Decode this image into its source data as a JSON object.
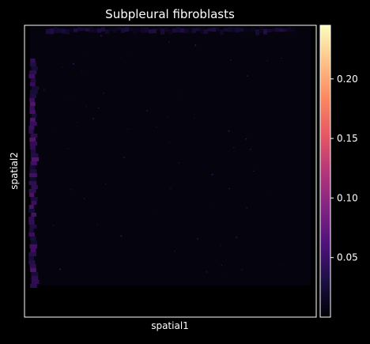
{
  "chart_data": {
    "type": "heatmap",
    "title": "Subpleural fibroblasts",
    "xlabel": "spatial1",
    "ylabel": "spatial2",
    "xticks": [],
    "yticks": [],
    "grid": false,
    "background_color": "#000000",
    "axes_facecolor": "#000000",
    "spine_color": "#ffffff",
    "colormap": "magma",
    "colormap_stops": [
      "#000004",
      "#1c1044",
      "#4f127b",
      "#812581",
      "#b5367a",
      "#e55964",
      "#fb8761",
      "#fec287",
      "#fcfdbf"
    ],
    "colorbar": {
      "range": [
        0.0,
        0.245
      ],
      "ticks": [
        0.05,
        0.1,
        0.15,
        0.2
      ],
      "tick_labels": [
        "0.05",
        "0.10",
        "0.15",
        "0.20"
      ],
      "placement": "right"
    },
    "spot_field": {
      "description_of_values": "expression score per spot; nearly all spots near 0 (very dark purple), slightly higher along the left edge strip and upper edge",
      "background_value": 0.005,
      "left_edge_value": 0.05,
      "top_edge_value": 0.03
    }
  }
}
